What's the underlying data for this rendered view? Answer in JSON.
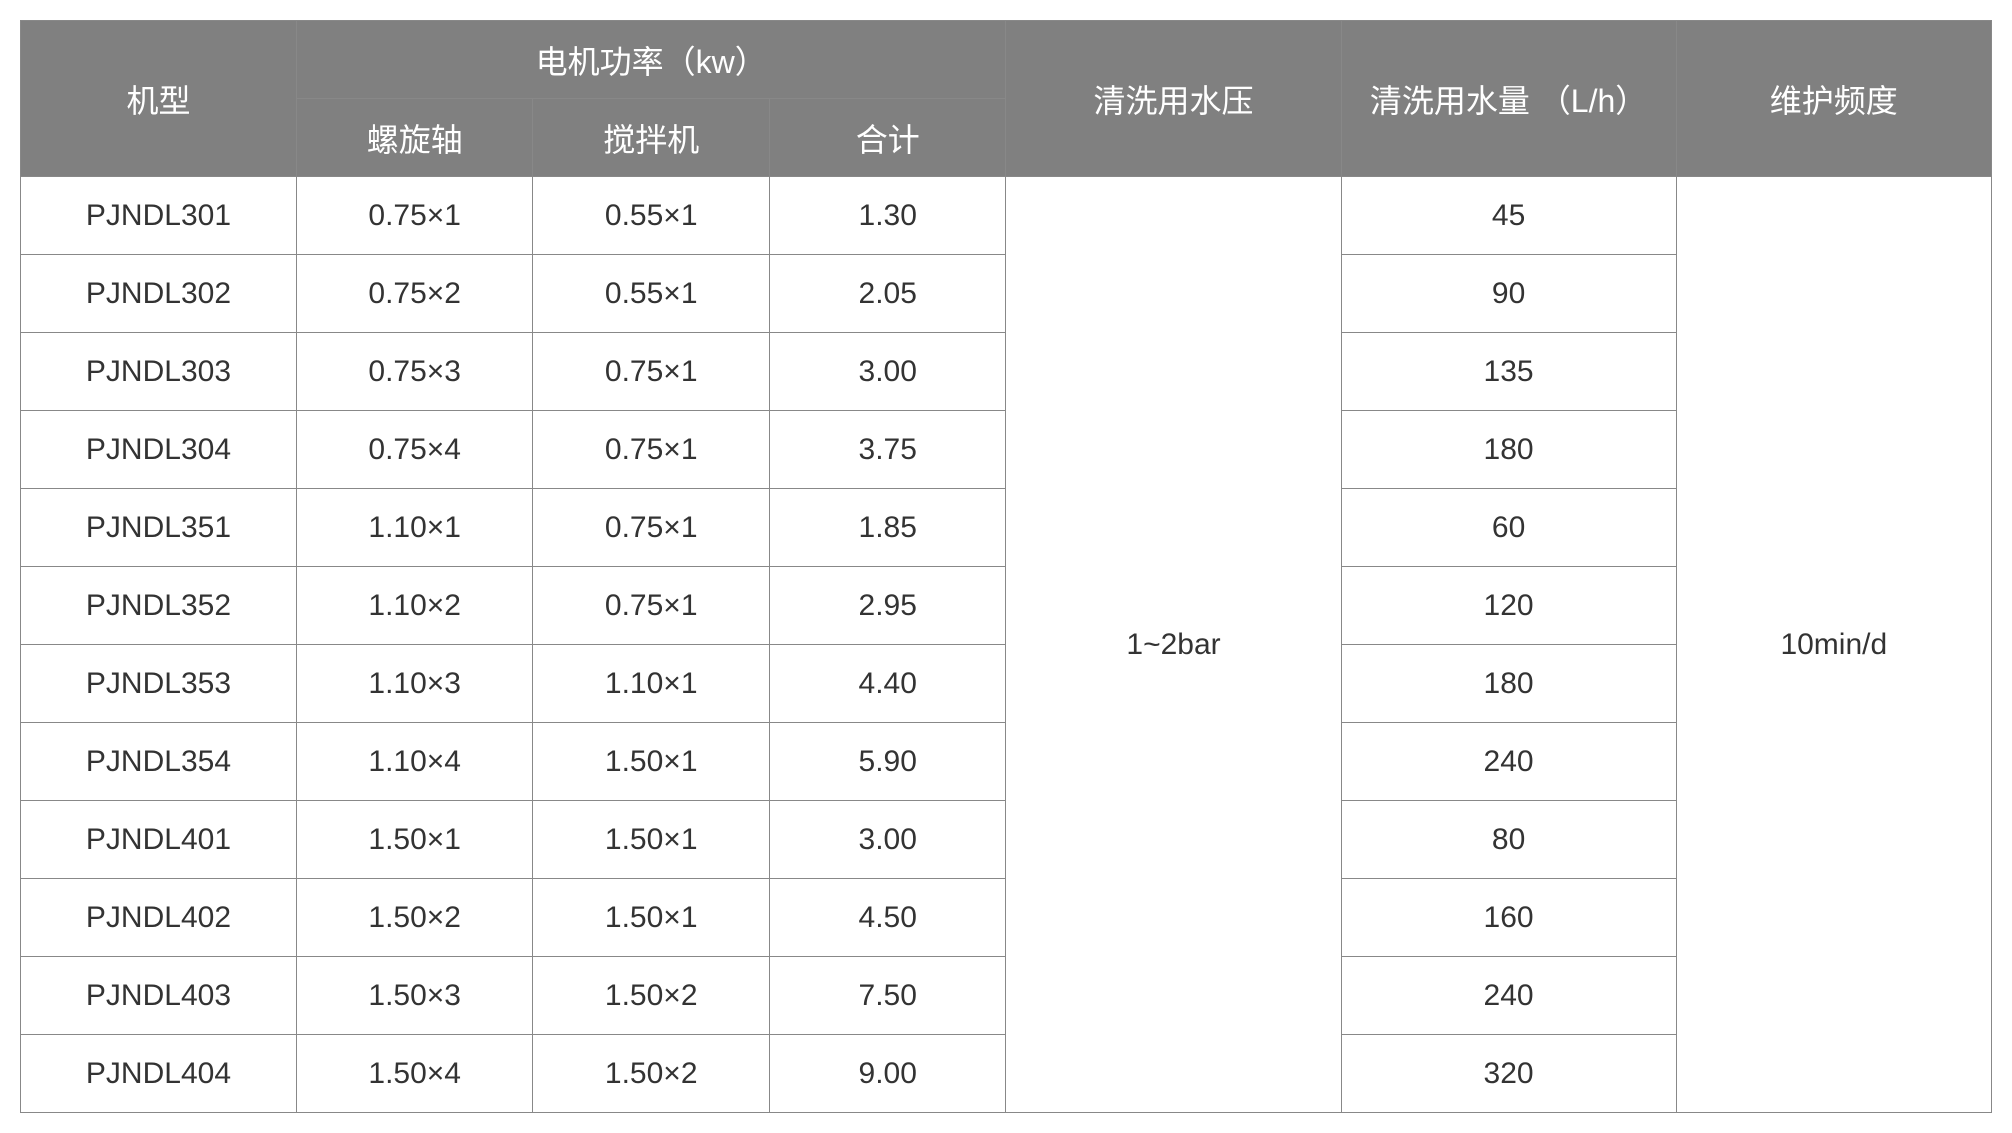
{
  "type": "table",
  "colors": {
    "header_bg": "#808080",
    "header_text": "#ffffff",
    "cell_bg": "#ffffff",
    "cell_text": "#333333",
    "border": "#888888"
  },
  "fontsize": {
    "header": 32,
    "body": 30
  },
  "headers": {
    "model": "机型",
    "motor_power": "电机功率（kw）",
    "screw": "螺旋轴",
    "mixer": "搅拌机",
    "total": "合计",
    "wash_pressure": "清洗用水压",
    "wash_water": "清洗用水量\n（L/h）",
    "maintenance": "维护频度"
  },
  "merged": {
    "wash_pressure": "1~2bar",
    "maintenance": "10min/d"
  },
  "rows": [
    {
      "model": "PJNDL301",
      "screw": "0.75×1",
      "mixer": "0.55×1",
      "total": "1.30",
      "water": "45"
    },
    {
      "model": "PJNDL302",
      "screw": "0.75×2",
      "mixer": "0.55×1",
      "total": "2.05",
      "water": "90"
    },
    {
      "model": "PJNDL303",
      "screw": "0.75×3",
      "mixer": "0.75×1",
      "total": "3.00",
      "water": "135"
    },
    {
      "model": "PJNDL304",
      "screw": "0.75×4",
      "mixer": "0.75×1",
      "total": "3.75",
      "water": "180"
    },
    {
      "model": "PJNDL351",
      "screw": "1.10×1",
      "mixer": "0.75×1",
      "total": "1.85",
      "water": "60"
    },
    {
      "model": "PJNDL352",
      "screw": "1.10×2",
      "mixer": "0.75×1",
      "total": "2.95",
      "water": "120"
    },
    {
      "model": "PJNDL353",
      "screw": "1.10×3",
      "mixer": "1.10×1",
      "total": "4.40",
      "water": "180"
    },
    {
      "model": "PJNDL354",
      "screw": "1.10×4",
      "mixer": "1.50×1",
      "total": "5.90",
      "water": "240"
    },
    {
      "model": "PJNDL401",
      "screw": "1.50×1",
      "mixer": "1.50×1",
      "total": "3.00",
      "water": "80"
    },
    {
      "model": "PJNDL402",
      "screw": "1.50×2",
      "mixer": "1.50×1",
      "total": "4.50",
      "water": "160"
    },
    {
      "model": "PJNDL403",
      "screw": "1.50×3",
      "mixer": "1.50×2",
      "total": "7.50",
      "water": "240"
    },
    {
      "model": "PJNDL404",
      "screw": "1.50×4",
      "mixer": "1.50×2",
      "total": "9.00",
      "water": "320"
    }
  ]
}
